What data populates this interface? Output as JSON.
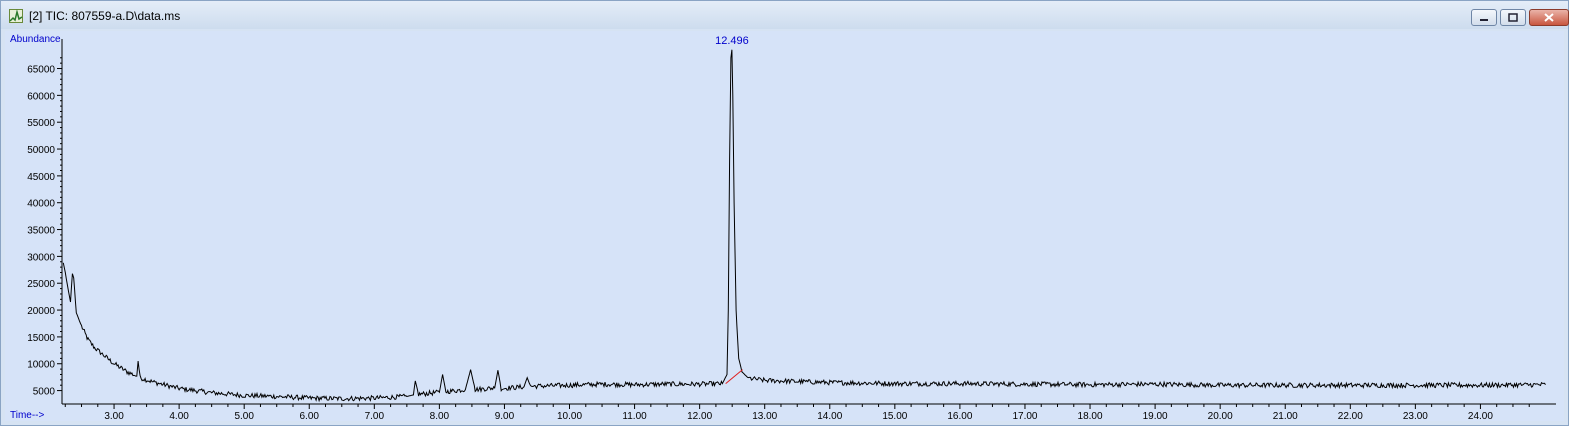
{
  "window": {
    "title": "[2] TIC: 807559-a.D\\data.ms",
    "icon": "chromatogram-icon",
    "controls": [
      "minimize-icon",
      "restore-icon",
      "close-icon"
    ]
  },
  "chart_data": {
    "type": "line",
    "ylabel": "Abundance",
    "xlabel": "Time-->",
    "xlim": [
      2.2,
      25.1
    ],
    "ylim": [
      2500,
      70500
    ],
    "x_ticks": [
      "3.00",
      "4.00",
      "5.00",
      "6.00",
      "7.00",
      "8.00",
      "9.00",
      "10.00",
      "11.00",
      "12.00",
      "13.00",
      "14.00",
      "15.00",
      "16.00",
      "17.00",
      "18.00",
      "19.00",
      "20.00",
      "21.00",
      "22.00",
      "23.00",
      "24.00"
    ],
    "y_ticks": [
      "5000",
      "10000",
      "15000",
      "20000",
      "25000",
      "30000",
      "35000",
      "40000",
      "45000",
      "50000",
      "55000",
      "60000",
      "65000"
    ],
    "peak_label": "12.496",
    "series": [
      {
        "color": "#000000",
        "points": [
          [
            2.22,
            28800
          ],
          [
            2.25,
            27000
          ],
          [
            2.3,
            23500
          ],
          [
            2.33,
            21500
          ],
          [
            2.36,
            26800
          ],
          [
            2.38,
            26000
          ],
          [
            2.42,
            19500
          ],
          [
            2.5,
            17000
          ],
          [
            2.6,
            14500
          ],
          [
            2.7,
            13000
          ],
          [
            2.85,
            11500
          ],
          [
            3.0,
            10000
          ],
          [
            3.2,
            8500
          ],
          [
            3.35,
            7700
          ],
          [
            3.37,
            10500
          ],
          [
            3.4,
            7400
          ],
          [
            3.6,
            6600
          ],
          [
            3.8,
            6000
          ],
          [
            4.0,
            5400
          ],
          [
            4.5,
            4600
          ],
          [
            5.0,
            4100
          ],
          [
            5.5,
            3900
          ],
          [
            6.0,
            3600
          ],
          [
            6.5,
            3500
          ],
          [
            7.0,
            3600
          ],
          [
            7.5,
            3900
          ],
          [
            7.6,
            4200
          ],
          [
            7.63,
            6800
          ],
          [
            7.68,
            4300
          ],
          [
            8.0,
            4700
          ],
          [
            8.05,
            8000
          ],
          [
            8.1,
            4800
          ],
          [
            8.4,
            5200
          ],
          [
            8.48,
            8900
          ],
          [
            8.55,
            5200
          ],
          [
            8.85,
            5500
          ],
          [
            8.9,
            8800
          ],
          [
            8.95,
            5400
          ],
          [
            9.3,
            5700
          ],
          [
            9.35,
            7400
          ],
          [
            9.4,
            5800
          ],
          [
            10.0,
            6000
          ],
          [
            10.5,
            6200
          ],
          [
            11.0,
            6100
          ],
          [
            11.5,
            6200
          ],
          [
            12.0,
            6200
          ],
          [
            12.35,
            6300
          ],
          [
            12.42,
            8000
          ],
          [
            12.44,
            20000
          ],
          [
            12.46,
            48000
          ],
          [
            12.48,
            67000
          ],
          [
            12.496,
            68500
          ],
          [
            12.51,
            60000
          ],
          [
            12.53,
            40000
          ],
          [
            12.56,
            20000
          ],
          [
            12.6,
            11000
          ],
          [
            12.65,
            8500
          ],
          [
            12.75,
            7300
          ],
          [
            13.0,
            6900
          ],
          [
            14.0,
            6500
          ],
          [
            15.0,
            6300
          ],
          [
            16.0,
            6300
          ],
          [
            17.0,
            6200
          ],
          [
            18.0,
            6100
          ],
          [
            19.0,
            6200
          ],
          [
            20.0,
            6000
          ],
          [
            21.0,
            6000
          ],
          [
            22.0,
            6000
          ],
          [
            23.0,
            6000
          ],
          [
            24.0,
            6000
          ],
          [
            25.0,
            6100
          ]
        ]
      }
    ],
    "baseline_segment": {
      "color": "#e02020",
      "points": [
        [
          12.4,
          6300
        ],
        [
          12.66,
          8900
        ]
      ]
    },
    "axis_text_color": "#0000cc",
    "background": "#d6e3f8"
  }
}
